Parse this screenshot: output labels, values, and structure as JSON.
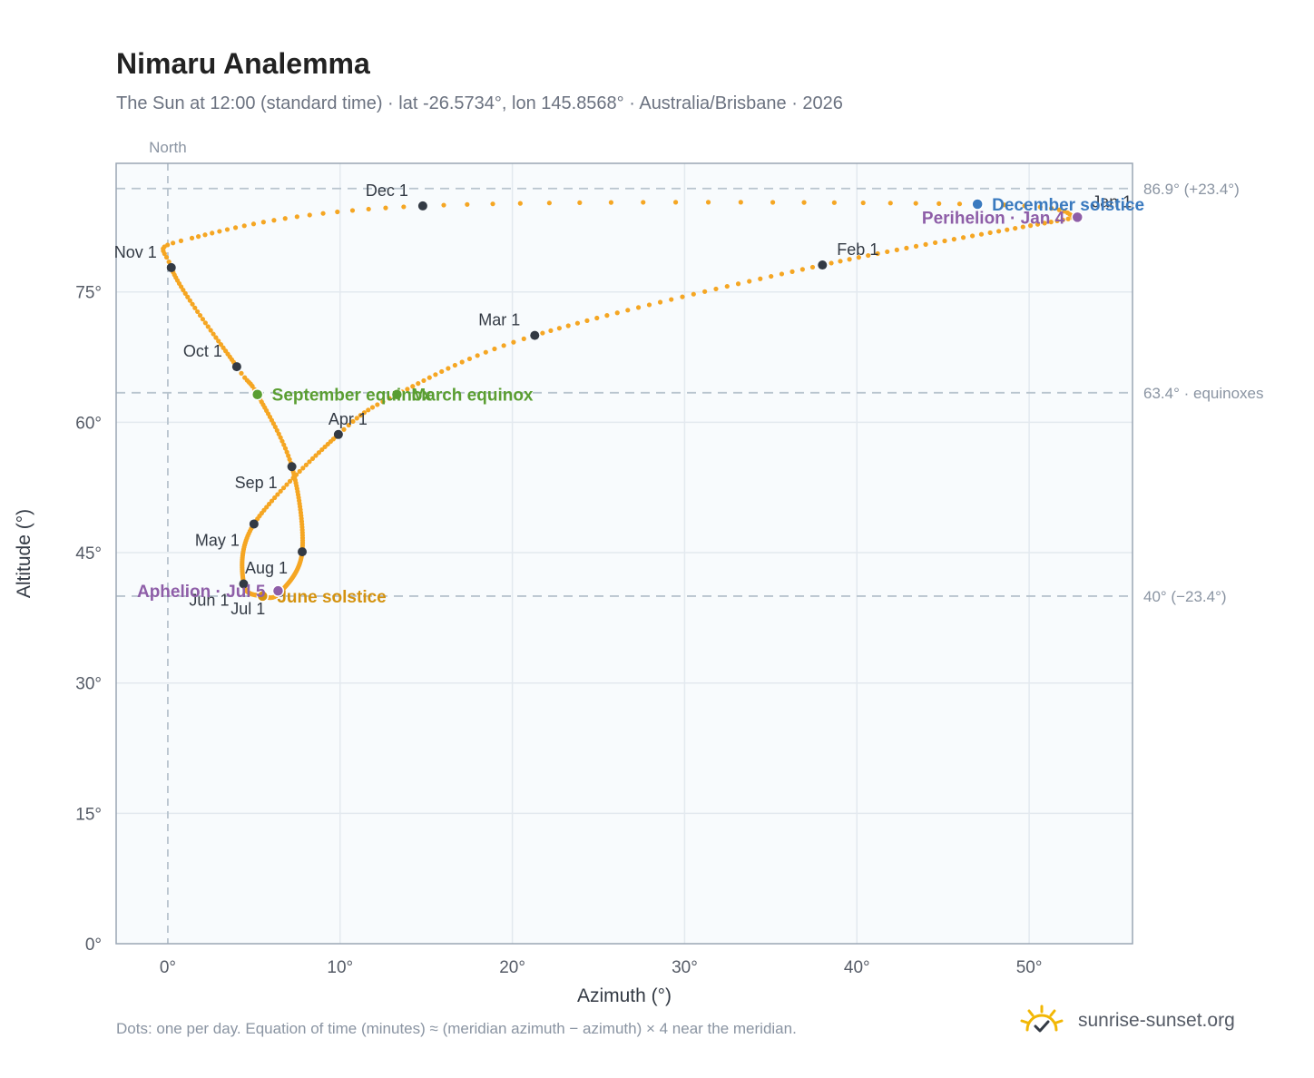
{
  "title": "Nimaru Analemma",
  "subtitle": "The Sun at 12:00 (standard time) · lat -26.5734°, lon 145.8568° · Australia/Brisbane · 2026",
  "footnote": "Dots: one per day. Equation of time (minutes) ≈ (meridian azimuth − azimuth) × 4 near the meridian.",
  "brand": {
    "name": "sunrise-sunset.org",
    "logo_icon": "sun-check-icon"
  },
  "colors": {
    "curve": "#f5a623",
    "month_marker": "#333a44",
    "solstice_dec": "#3a7abf",
    "solstice_jun": "#d4920f",
    "equinox": "#5a9e32",
    "apsis": "#8e5ea8",
    "reference_line": "#b8c4ce",
    "plot_bg": "#f8fbfd"
  },
  "chart_data": {
    "type": "scatter",
    "title": "Nimaru Analemma",
    "xlabel": "Azimuth (°)",
    "ylabel": "Altitude (°)",
    "xlim": [
      -3,
      56
    ],
    "ylim": [
      0,
      89.8
    ],
    "x_ticks": [
      0,
      10,
      20,
      30,
      40,
      50
    ],
    "x_tick_labels": [
      "0°",
      "10°",
      "20°",
      "30°",
      "40°",
      "50°"
    ],
    "y_ticks": [
      0,
      15,
      30,
      45,
      60,
      75
    ],
    "y_tick_labels": [
      "0°",
      "15°",
      "30°",
      "45°",
      "60°",
      "75°"
    ],
    "grid": true,
    "meridian": {
      "x": 0,
      "label": "North"
    },
    "reference_lines": [
      {
        "y": 86.9,
        "label": "86.9° (+23.4°)"
      },
      {
        "y": 63.4,
        "label": "63.4° · equinoxes"
      },
      {
        "y": 40.0,
        "label": "40° (−23.4°)"
      }
    ],
    "path_anchors": [
      {
        "day": 1,
        "x": 52.8,
        "y": 83.6
      },
      {
        "day": 32,
        "x": 38.0,
        "y": 78.1
      },
      {
        "day": 60,
        "x": 21.3,
        "y": 70.0
      },
      {
        "day": 79,
        "x": 13.3,
        "y": 63.2
      },
      {
        "day": 91,
        "x": 9.9,
        "y": 58.6
      },
      {
        "day": 121,
        "x": 5.0,
        "y": 48.3
      },
      {
        "day": 152,
        "x": 4.4,
        "y": 41.4
      },
      {
        "day": 172,
        "x": 5.5,
        "y": 40.0
      },
      {
        "day": 182,
        "x": 6.5,
        "y": 40.4
      },
      {
        "day": 213,
        "x": 7.8,
        "y": 45.1
      },
      {
        "day": 244,
        "x": 7.2,
        "y": 54.9
      },
      {
        "day": 266,
        "x": 5.2,
        "y": 63.2
      },
      {
        "day": 274,
        "x": 4.0,
        "y": 66.4
      },
      {
        "day": 305,
        "x": 0.2,
        "y": 77.8
      },
      {
        "day": 315,
        "x": 1.4,
        "y": 81.2
      },
      {
        "day": 335,
        "x": 14.8,
        "y": 84.9
      },
      {
        "day": 355,
        "x": 47.0,
        "y": 85.1
      },
      {
        "day": 366,
        "x": 52.8,
        "y": 83.6
      }
    ],
    "month_markers": [
      {
        "label": "Jan 1",
        "x": 52.8,
        "y": 83.6,
        "pos": "ne"
      },
      {
        "label": "Feb 1",
        "x": 38.0,
        "y": 78.1,
        "pos": "ne"
      },
      {
        "label": "Mar 1",
        "x": 21.3,
        "y": 70.0,
        "pos": "nw"
      },
      {
        "label": "Apr 1",
        "x": 9.9,
        "y": 58.6,
        "pos": "sw-in"
      },
      {
        "label": "May 1",
        "x": 5.0,
        "y": 48.3,
        "pos": "sw"
      },
      {
        "label": "Jun 1",
        "x": 4.4,
        "y": 41.4,
        "pos": "sw"
      },
      {
        "label": "Jul 1",
        "x": 6.5,
        "y": 40.4,
        "pos": "sw"
      },
      {
        "label": "Aug 1",
        "x": 7.8,
        "y": 45.1,
        "pos": "sw"
      },
      {
        "label": "Sep 1",
        "x": 7.2,
        "y": 54.9,
        "pos": "sw"
      },
      {
        "label": "Oct 1",
        "x": 4.0,
        "y": 66.4,
        "pos": "nw"
      },
      {
        "label": "Nov 1",
        "x": 0.2,
        "y": 77.8,
        "pos": "nw"
      },
      {
        "label": "Dec 1",
        "x": 14.8,
        "y": 84.9,
        "pos": "nw"
      }
    ],
    "events": [
      {
        "label": "December solstice",
        "x": 47.0,
        "y": 85.1,
        "color": "#3a7abf",
        "pos": "e"
      },
      {
        "label": "March equinox",
        "x": 13.3,
        "y": 63.2,
        "color": "#5a9e32",
        "pos": "e"
      },
      {
        "label": "June solstice",
        "x": 5.5,
        "y": 40.0,
        "color": "#d4920f",
        "pos": "e"
      },
      {
        "label": "September equinox",
        "x": 5.2,
        "y": 63.2,
        "color": "#5a9e32",
        "pos": "e"
      },
      {
        "label": "Perihelion · Jan 4",
        "x": 52.8,
        "y": 83.6,
        "color": "#8e5ea8",
        "pos": "w"
      },
      {
        "label": "Aphelion · Jul 5",
        "x": 6.4,
        "y": 40.6,
        "color": "#8e5ea8",
        "pos": "w"
      }
    ]
  }
}
